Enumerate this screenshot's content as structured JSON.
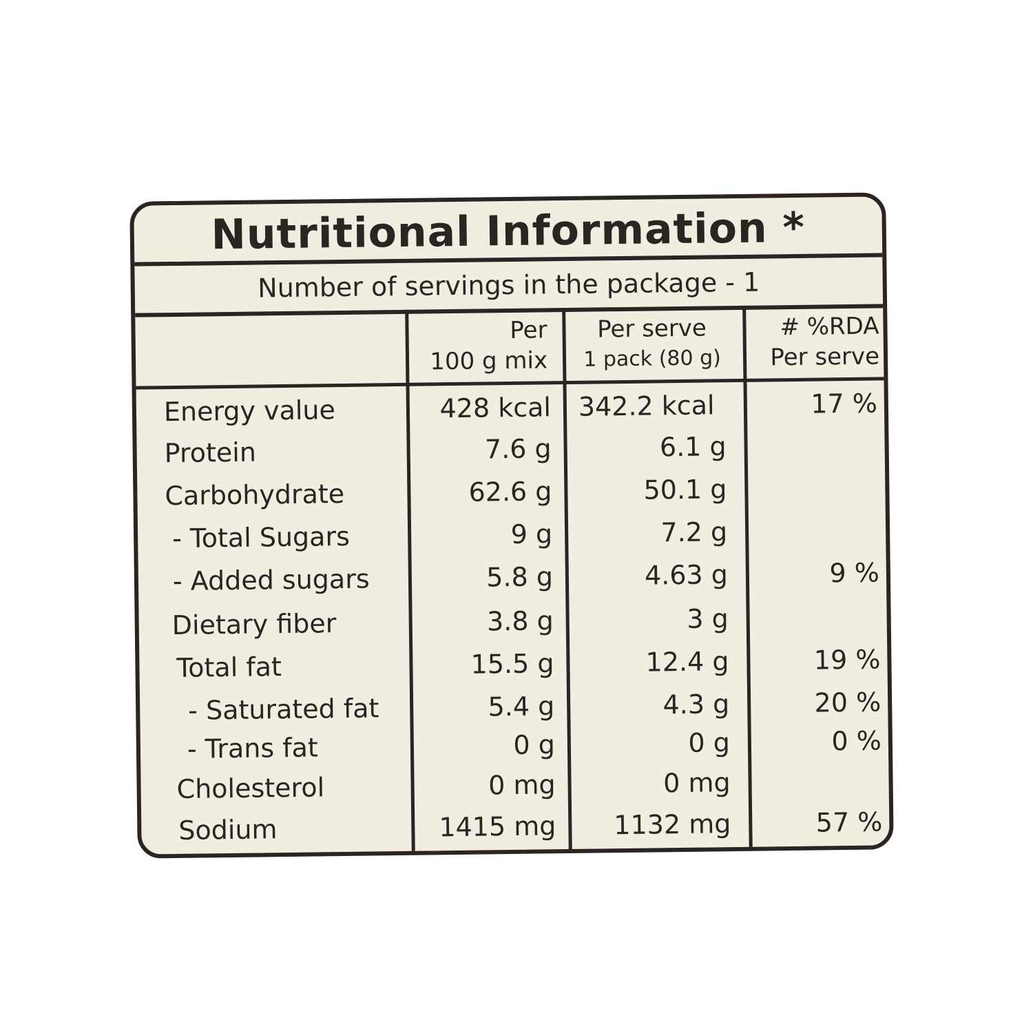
{
  "label": {
    "title": "Nutritional Information *",
    "servings": "Number of servings in the package - 1",
    "headers": {
      "col1_line1": "Per",
      "col1_line2": "100 g mix",
      "col2_line1": "Per serve",
      "col2_line2": "1 pack (80 g)",
      "col3_line1": "# %RDA",
      "col3_line2": "Per serve"
    },
    "rows": [
      {
        "name": "Energy value",
        "per100": "428 kcal",
        "perserve": "342.2 kcal",
        "rda": "17 %"
      },
      {
        "name": "Protein",
        "per100": "7.6 g",
        "perserve": "6.1 g",
        "rda": ""
      },
      {
        "name": "Carbohydrate",
        "per100": "62.6 g",
        "perserve": "50.1 g",
        "rda": ""
      },
      {
        "name": " - Total Sugars",
        "per100": "9 g",
        "perserve": "7.2 g",
        "rda": ""
      },
      {
        "name": " - Added sugars",
        "per100": "5.8 g",
        "perserve": "4.63 g",
        "rda": "9 %"
      },
      {
        "name": "Dietary fiber",
        "per100": "3.8 g",
        "perserve": "3 g",
        "rda": ""
      },
      {
        "name": "Total fat",
        "per100": "15.5 g",
        "perserve": "12.4 g",
        "rda": "19 %"
      },
      {
        "name": "  - Saturated fat",
        "per100": "5.4 g",
        "perserve": "4.3 g",
        "rda": "20 %"
      },
      {
        "name": "  - Trans fat",
        "per100": "0 g",
        "perserve": "0 g",
        "rda": "0 %"
      },
      {
        "name": "Cholesterol",
        "per100": "0 mg",
        "perserve": "0 mg",
        "rda": ""
      },
      {
        "name": "Sodium",
        "per100": "1415 mg",
        "perserve": "1132 mg",
        "rda": "57 %"
      }
    ]
  }
}
